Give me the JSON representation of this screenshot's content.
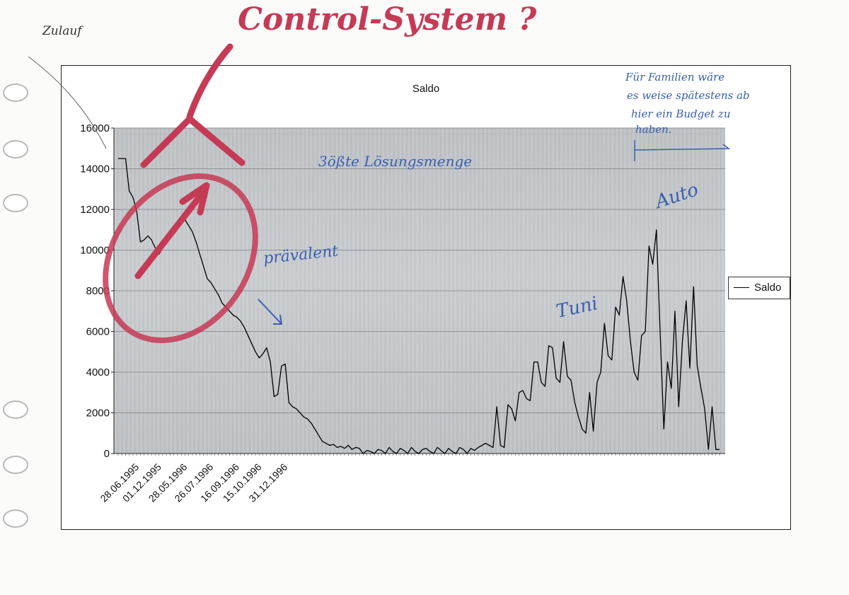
{
  "chart_data": {
    "type": "line",
    "title": "Saldo",
    "series": [
      {
        "name": "Saldo",
        "values": [
          14500,
          14500,
          14500,
          12900,
          12600,
          11900,
          10400,
          10500,
          10700,
          10500,
          10100,
          9800,
          10100,
          10400,
          10700,
          10900,
          11100,
          11300,
          11500,
          11200,
          10900,
          10400,
          9800,
          9200,
          8600,
          8400,
          8100,
          7800,
          7400,
          7200,
          7000,
          6800,
          6700,
          6500,
          6200,
          5800,
          5400,
          5000,
          4700,
          4900,
          5200,
          4500,
          2800,
          2900,
          4300,
          4400,
          2500,
          2300,
          2200,
          2000,
          1800,
          1700,
          1500,
          1200,
          900,
          600,
          500,
          400,
          450,
          300,
          350,
          250,
          400,
          200,
          300,
          250,
          0,
          150,
          100,
          0,
          200,
          150,
          0,
          300,
          100,
          0,
          250,
          150,
          0,
          300,
          100,
          0,
          200,
          250,
          100,
          0,
          300,
          150,
          0,
          250,
          100,
          0,
          300,
          200,
          0,
          250,
          150,
          300,
          400,
          500,
          400,
          300,
          2300,
          400,
          300,
          2400,
          2200,
          1600,
          3000,
          3100,
          2700,
          2600,
          4500,
          4500,
          3500,
          3300,
          5300,
          5200,
          3700,
          3500,
          5500,
          3800,
          3600,
          2500,
          1800,
          1200,
          1000,
          3000,
          1100,
          3500,
          4000,
          6400,
          4800,
          4600,
          7200,
          6800,
          8700,
          7500,
          5500,
          4000,
          3600,
          5800,
          6000,
          10200,
          9300,
          11000,
          6000,
          1200,
          4500,
          3200,
          7000,
          2300,
          5500,
          7500,
          4200,
          8200,
          4300,
          3200,
          2200,
          200,
          2300,
          200,
          200
        ]
      }
    ],
    "x_tick_labels": [
      "28.06.1995",
      "01.12.1995",
      "28.05.1996",
      "26.07.1996",
      "16.09.1996",
      "15.10.1996",
      "31.12.1996"
    ],
    "x_tick_indices": [
      5,
      11,
      18,
      25,
      32,
      38,
      45
    ],
    "y_ticks": [
      0,
      2000,
      4000,
      6000,
      8000,
      10000,
      12000,
      14000,
      16000
    ],
    "ylim": [
      0,
      16000
    ],
    "grid": true,
    "legend": {
      "position": "right",
      "entries": [
        "Saldo"
      ]
    },
    "colors": {
      "line": "#000000",
      "plot_background": "#bfc2c5",
      "gridline": "#8f9296"
    }
  },
  "annotations": {
    "top_left": "Zulauf",
    "control": "Control-System ?",
    "highest": "3ößte Lösungsmenge",
    "praevalent": "prävalent",
    "tuni": "Tuni",
    "auto": "Auto",
    "family_note_lines": [
      "Für Familien wäre",
      "es weise spätestens ab",
      "hier ein Budget zu",
      "haben."
    ]
  },
  "colors": {
    "red_pen": "#c53a55",
    "blue_pen": "#3a5fb0"
  }
}
